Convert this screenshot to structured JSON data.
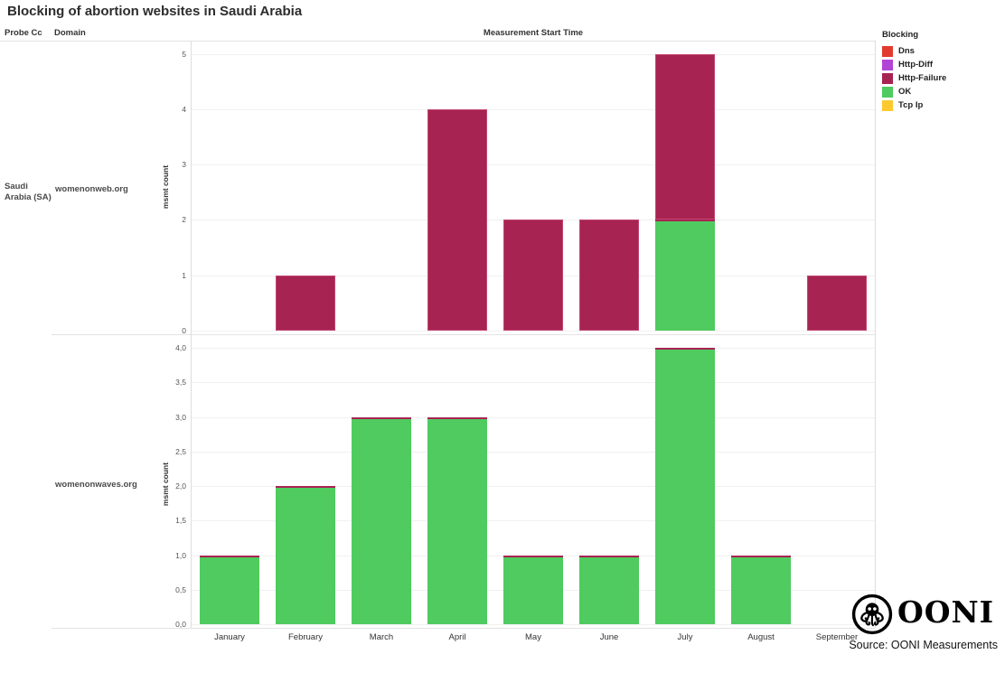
{
  "title": "Blocking of abortion websites in Saudi Arabia",
  "columns": {
    "probe_cc": "Probe Cc",
    "domain": "Domain"
  },
  "x_axis_title": "Measurement Start Time",
  "y_axis_title": "msmt count",
  "probe_cc_value": "Saudi Arabia (SA)",
  "months": [
    "January",
    "February",
    "March",
    "April",
    "May",
    "June",
    "July",
    "August",
    "September"
  ],
  "legend": {
    "title": "Blocking",
    "position": "right",
    "items": [
      {
        "label": "Dns",
        "color": "#e23b2e"
      },
      {
        "label": "Http-Diff",
        "color": "#b244d6"
      },
      {
        "label": "Http-Failure",
        "color": "#a72352"
      },
      {
        "label": "OK",
        "color": "#4fcb5f"
      },
      {
        "label": "Tcp Ip",
        "color": "#fcc930"
      }
    ]
  },
  "chart_data": [
    {
      "type": "bar",
      "stacked": true,
      "probe_cc": "Saudi Arabia (SA)",
      "domain": "womenonweb.org",
      "categories": [
        "January",
        "February",
        "March",
        "April",
        "May",
        "June",
        "July",
        "August",
        "September"
      ],
      "series": [
        {
          "name": "OK",
          "color": "#4fcb5f",
          "values": [
            0,
            0,
            0,
            0,
            0,
            0,
            2,
            0,
            0
          ]
        },
        {
          "name": "Http-Failure",
          "color": "#a72352",
          "values": [
            0,
            1,
            0,
            4,
            2,
            2,
            3,
            0,
            1
          ]
        }
      ],
      "xlabel": "Measurement Start Time",
      "ylabel": "msmt count",
      "ylim": [
        0,
        5.1
      ],
      "grid": true,
      "yticks": [
        {
          "label": "0",
          "v": 0
        },
        {
          "label": "1",
          "v": 1
        },
        {
          "label": "2",
          "v": 2
        },
        {
          "label": "3",
          "v": 3
        },
        {
          "label": "4",
          "v": 4
        },
        {
          "label": "5",
          "v": 5
        }
      ]
    },
    {
      "type": "bar",
      "stacked": true,
      "probe_cc": "Saudi Arabia (SA)",
      "domain": "womenonwaves.org",
      "categories": [
        "January",
        "February",
        "March",
        "April",
        "May",
        "June",
        "July",
        "August",
        "September"
      ],
      "series": [
        {
          "name": "OK",
          "color": "#4fcb5f",
          "values": [
            1,
            2,
            3,
            3,
            1,
            1,
            4,
            1,
            0
          ]
        }
      ],
      "xlabel": "Measurement Start Time",
      "ylabel": "msmt count",
      "ylim": [
        0,
        4.2
      ],
      "grid": true,
      "yticks": [
        {
          "label": "0,0",
          "v": 0
        },
        {
          "label": "0,5",
          "v": 0.5
        },
        {
          "label": "1,0",
          "v": 1
        },
        {
          "label": "1,5",
          "v": 1.5
        },
        {
          "label": "2,0",
          "v": 2
        },
        {
          "label": "2,5",
          "v": 2.5
        },
        {
          "label": "3,0",
          "v": 3
        },
        {
          "label": "3,5",
          "v": 3.5
        },
        {
          "label": "4,0",
          "v": 4
        }
      ]
    }
  ],
  "footer": {
    "logo_text": "OONI",
    "source": "Source: OONI Measurements"
  }
}
